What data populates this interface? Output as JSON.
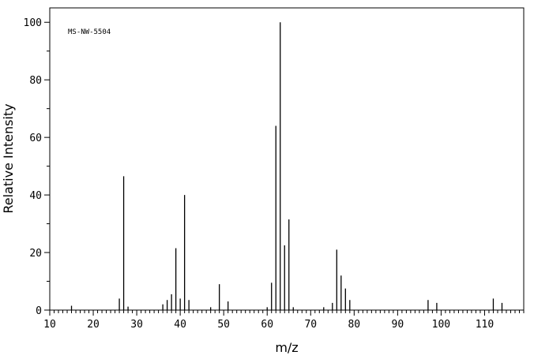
{
  "chart_data": {
    "type": "bar",
    "annotation": "MS-NW-5504",
    "xlabel": "m/z",
    "ylabel": "Relative Intensity",
    "xlim": [
      10,
      119
    ],
    "ylim": [
      0,
      105
    ],
    "xticks": [
      10,
      20,
      30,
      40,
      50,
      60,
      70,
      80,
      90,
      100,
      110
    ],
    "yticks": [
      0,
      20,
      40,
      60,
      80,
      100
    ],
    "grid": false,
    "peaks": [
      {
        "mz": 15,
        "intensity": 1.5
      },
      {
        "mz": 26,
        "intensity": 4
      },
      {
        "mz": 27,
        "intensity": 46.5
      },
      {
        "mz": 28,
        "intensity": 1.2
      },
      {
        "mz": 36,
        "intensity": 2
      },
      {
        "mz": 37,
        "intensity": 3.5
      },
      {
        "mz": 38,
        "intensity": 5.5
      },
      {
        "mz": 39,
        "intensity": 21.5
      },
      {
        "mz": 40,
        "intensity": 4
      },
      {
        "mz": 41,
        "intensity": 40
      },
      {
        "mz": 42,
        "intensity": 3.5
      },
      {
        "mz": 47,
        "intensity": 1
      },
      {
        "mz": 49,
        "intensity": 9
      },
      {
        "mz": 51,
        "intensity": 3
      },
      {
        "mz": 60,
        "intensity": 1
      },
      {
        "mz": 61,
        "intensity": 9.5
      },
      {
        "mz": 62,
        "intensity": 64
      },
      {
        "mz": 63,
        "intensity": 100
      },
      {
        "mz": 64,
        "intensity": 22.5
      },
      {
        "mz": 65,
        "intensity": 31.5
      },
      {
        "mz": 66,
        "intensity": 1
      },
      {
        "mz": 73,
        "intensity": 1
      },
      {
        "mz": 75,
        "intensity": 2.5
      },
      {
        "mz": 76,
        "intensity": 21
      },
      {
        "mz": 77,
        "intensity": 12
      },
      {
        "mz": 78,
        "intensity": 7.5
      },
      {
        "mz": 79,
        "intensity": 3.5
      },
      {
        "mz": 97,
        "intensity": 3.5
      },
      {
        "mz": 99,
        "intensity": 2.5
      },
      {
        "mz": 112,
        "intensity": 4
      },
      {
        "mz": 114,
        "intensity": 2.5
      }
    ]
  }
}
